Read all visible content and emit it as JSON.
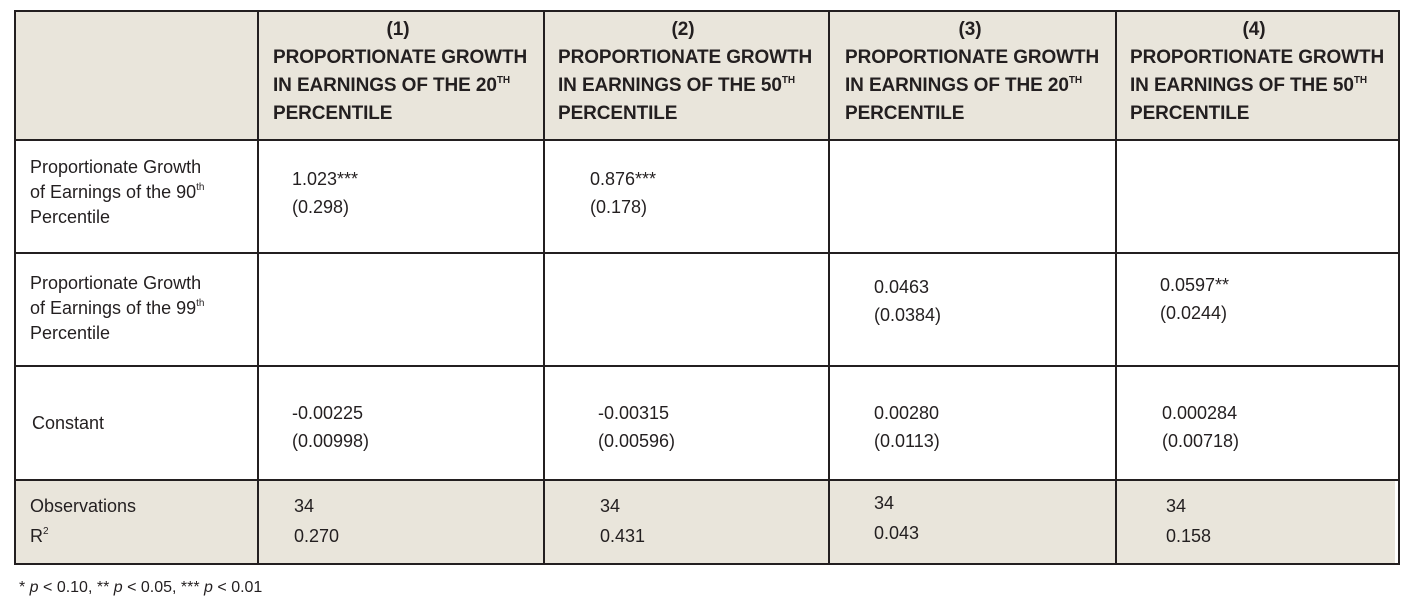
{
  "table": {
    "columns": [
      {
        "number": "(1)",
        "title_main": "PROPORTIONATE GROWTH IN EARNINGS OF THE 20",
        "title_sup": "TH",
        "title_end": "PERCENTILE"
      },
      {
        "number": "(2)",
        "title_main": "PROPORTIONATE GROWTH IN EARNINGS OF THE 50",
        "title_sup": "TH",
        "title_end": "PERCENTILE"
      },
      {
        "number": "(3)",
        "title_main": "PROPORTIONATE GROWTH IN EARNINGS OF THE 20",
        "title_sup": "TH",
        "title_end": "PERCENTILE"
      },
      {
        "number": "(4)",
        "title_main": "PROPORTIONATE GROWTH IN EARNINGS OF THE 50",
        "title_sup": "TH",
        "title_end": "PERCENTILE"
      }
    ],
    "rows": [
      {
        "label_a": "Proportionate Growth",
        "label_b": "of Earnings of the 90",
        "label_sup": "th",
        "label_c": "Percentile",
        "cells": [
          {
            "coef": "1.023***",
            "se": "(0.298)"
          },
          {
            "coef": "0.876***",
            "se": "(0.178)"
          },
          {
            "coef": "",
            "se": ""
          },
          {
            "coef": "",
            "se": ""
          }
        ]
      },
      {
        "label_a": "Proportionate Growth",
        "label_b": "of Earnings of the 99",
        "label_sup": "th",
        "label_c": "Percentile",
        "cells": [
          {
            "coef": "",
            "se": ""
          },
          {
            "coef": "",
            "se": ""
          },
          {
            "coef": "0.0463",
            "se": "(0.0384)"
          },
          {
            "coef": "0.0597**",
            "se": "(0.0244)"
          }
        ]
      },
      {
        "label": "Constant",
        "cells": [
          {
            "coef": "-0.00225",
            "se": "(0.00998)"
          },
          {
            "coef": "-0.00315",
            "se": "(0.00596)"
          },
          {
            "coef": "0.00280",
            "se": "(0.0113)"
          },
          {
            "coef": "0.000284",
            "se": "(0.00718)"
          }
        ]
      }
    ],
    "stats": {
      "label_obs": "Observations",
      "label_r2": "R",
      "label_r2_sup": "2",
      "observations": [
        "34",
        "34",
        "34",
        "34"
      ],
      "r2": [
        "0.270",
        "0.431",
        "0.043",
        "0.158"
      ]
    }
  },
  "footnote": {
    "s1": "* ",
    "p1": "p",
    "t1": " < 0.10, ** ",
    "p2": "p",
    "t2": " < 0.05, *** ",
    "p3": "p",
    "t3": " < 0.01"
  },
  "colors": {
    "header_fill": "#e9e5db",
    "rule": "#231f20"
  }
}
